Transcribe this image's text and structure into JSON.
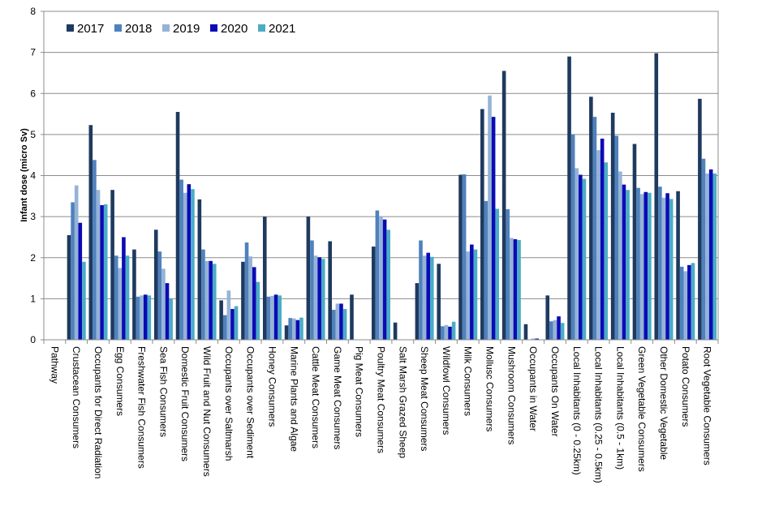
{
  "chart_data": {
    "type": "bar",
    "ylabel": "Infant  dose (micro Sv)",
    "ylim": [
      0,
      8
    ],
    "yticks": [
      0,
      1,
      2,
      3,
      4,
      5,
      6,
      7,
      8
    ],
    "grid": "horizontal",
    "legend": "top-left",
    "categories": [
      "Pathway",
      "Crustacean Consumers",
      "Occupants for Direct Radiation",
      "Egg Consumers",
      "Freshwater Fish Consumers",
      "Sea Fish Consumers",
      "Domestic Fruit Consumers",
      "Wild Fruit and Nut Consumers",
      "Occupants over Saltmarsh",
      "Occupants over Sediment",
      "Honey Consumers",
      "Marine Plants and Algae",
      "Cattle Meat Consumers",
      "Game Meat Consumers",
      "Pig Meat Consumers",
      "Poultry Meat Consumers",
      "Salt Marsh Grazed Sheep",
      "Sheep Meat Consumers",
      "Wildfowl Consumers",
      "Milk Consumers",
      "Mollusc Consumers",
      "Mushroom Consumers",
      "Occupants in Water",
      "Occupants On Water",
      "Local Inhabitants (0 - 0.25km)",
      "Local Inhabitants (0.25 - 0.5km)",
      "Local Inhabitants (0.5 - 1km)",
      "Green Vegetable Consumers",
      "Other Domestic Vegetable",
      "Potato Consumers",
      "Root Vegetable Consumers"
    ],
    "series": [
      {
        "name": "2017",
        "color": "#1f3a5f",
        "values": [
          null,
          2.55,
          5.23,
          3.65,
          2.2,
          2.68,
          5.55,
          3.42,
          0.96,
          1.9,
          3.0,
          0.35,
          3.0,
          2.4,
          1.1,
          2.27,
          0.42,
          1.38,
          1.85,
          4.02,
          5.62,
          6.55,
          0.38,
          1.08,
          6.9,
          5.92,
          5.53,
          4.77,
          6.98,
          3.62,
          5.87
        ]
      },
      {
        "name": "2018",
        "color": "#4f81bd",
        "values": [
          null,
          3.35,
          4.38,
          2.05,
          1.05,
          2.15,
          3.9,
          2.2,
          0.6,
          2.37,
          1.05,
          0.53,
          2.42,
          0.73,
          null,
          3.15,
          null,
          2.42,
          0.33,
          4.03,
          3.38,
          3.18,
          null,
          0.45,
          5.0,
          5.43,
          4.97,
          3.7,
          3.73,
          1.78,
          4.41
        ]
      },
      {
        "name": "2019",
        "color": "#95b3d7",
        "values": [
          null,
          3.76,
          3.65,
          1.75,
          1.08,
          1.73,
          3.58,
          1.92,
          1.2,
          2.03,
          1.07,
          0.52,
          2.05,
          0.88,
          null,
          3.0,
          null,
          2.05,
          0.36,
          2.15,
          5.95,
          2.48,
          0.03,
          0.48,
          4.18,
          4.62,
          4.1,
          3.55,
          3.46,
          1.67,
          4.05
        ]
      },
      {
        "name": "2020",
        "color": "#0b0bb5",
        "values": [
          null,
          2.85,
          3.28,
          2.5,
          1.1,
          1.38,
          3.79,
          1.92,
          0.75,
          1.77,
          1.1,
          0.48,
          2.01,
          0.88,
          null,
          2.93,
          null,
          2.12,
          0.32,
          2.32,
          5.43,
          2.45,
          0.03,
          0.57,
          4.02,
          4.9,
          3.78,
          3.6,
          3.57,
          1.82,
          4.15
        ]
      },
      {
        "name": "2021",
        "color": "#4bacc6",
        "values": [
          null,
          1.9,
          3.3,
          2.05,
          1.08,
          1.0,
          3.67,
          1.85,
          0.82,
          1.41,
          1.08,
          0.54,
          1.97,
          0.75,
          null,
          2.68,
          null,
          2.02,
          0.44,
          2.2,
          3.19,
          2.43,
          null,
          0.41,
          3.92,
          4.32,
          3.65,
          3.58,
          3.43,
          1.87,
          4.05
        ]
      }
    ]
  }
}
